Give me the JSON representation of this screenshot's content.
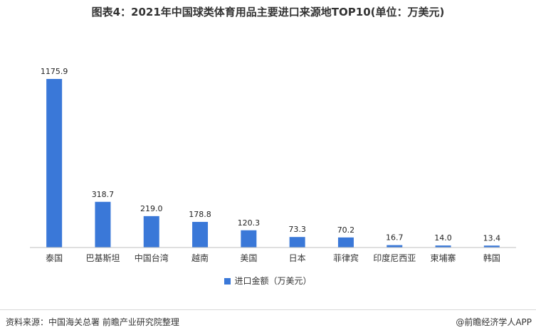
{
  "chart_data": {
    "type": "bar",
    "title": "图表4：2021年中国球类体育用品主要进口来源地TOP10(单位：万美元)",
    "categories": [
      "泰国",
      "巴基斯坦",
      "中国台湾",
      "越南",
      "美国",
      "日本",
      "菲律宾",
      "印度尼西亚",
      "柬埔寨",
      "韩国"
    ],
    "series": [
      {
        "name": "进口金额（万美元）",
        "values": [
          1175.9,
          318.7,
          219.0,
          178.8,
          120.3,
          73.3,
          70.2,
          16.7,
          14.0,
          13.4
        ],
        "labels": [
          "1175.9",
          "318.7",
          "219.0",
          "178.8",
          "120.3",
          "73.3",
          "70.2",
          "16.7",
          "14.0",
          "13.4"
        ]
      }
    ],
    "ylim": [
      0,
      1175.9
    ],
    "grid": false,
    "legend_position": "bottom",
    "bar_color": "#3a78d8"
  },
  "legend": {
    "label": "进口金额（万美元）"
  },
  "footer": {
    "source": "资料来源：中国海关总署 前瞻产业研究院整理",
    "brand": "@前瞻经济学人APP"
  }
}
